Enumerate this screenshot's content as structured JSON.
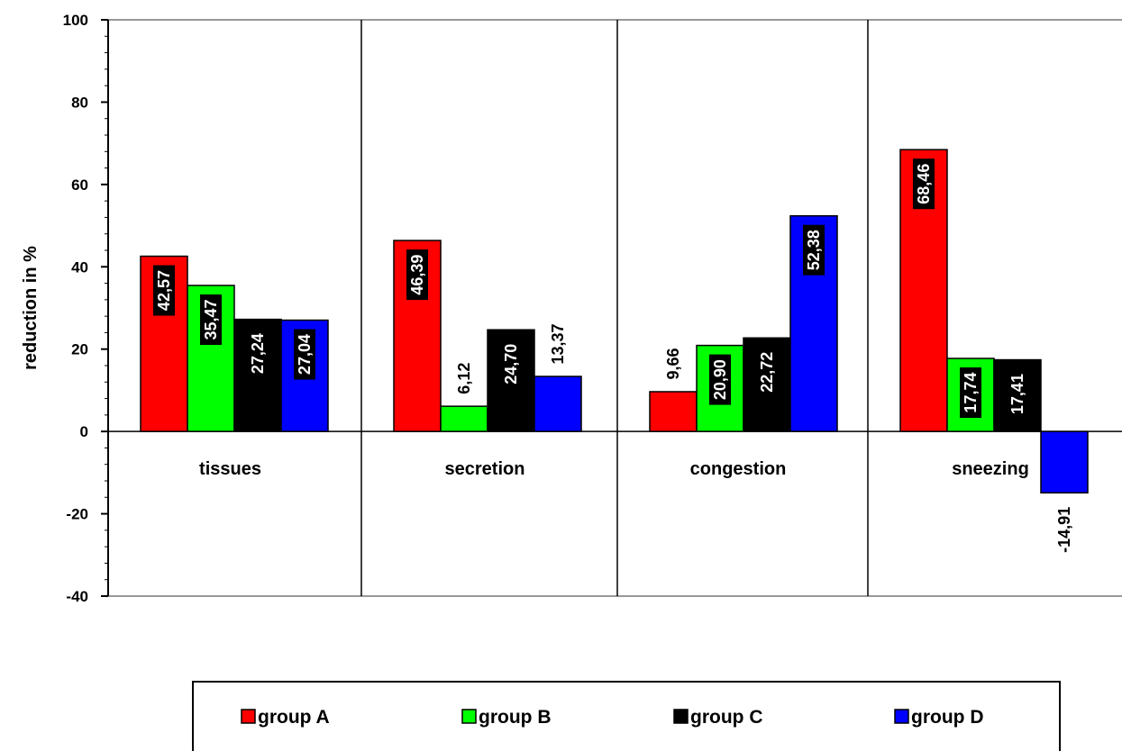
{
  "chart_data": {
    "type": "bar",
    "title": "",
    "xlabel": "",
    "ylabel": "reduction in %",
    "ylim": [
      -40,
      100
    ],
    "yticks": [
      "100",
      "80",
      "60",
      "40",
      "20",
      "0",
      "-20",
      "-40"
    ],
    "categories": [
      "tissues",
      "secretion",
      "congestion",
      "sneezing"
    ],
    "series": [
      {
        "name": "group A",
        "color": "#ff0000",
        "values": [
          42.57,
          46.39,
          9.66,
          68.46
        ],
        "labels": [
          "42,57",
          "46,39",
          "9,66",
          "68,46"
        ]
      },
      {
        "name": "group B",
        "color": "#00ff00",
        "values": [
          35.47,
          6.12,
          20.9,
          17.74
        ],
        "labels": [
          "35,47",
          "6,12",
          "20,90",
          "17,74"
        ]
      },
      {
        "name": "group C",
        "color": "#000000",
        "values": [
          27.24,
          24.7,
          22.72,
          17.41
        ],
        "labels": [
          "27,24",
          "24,70",
          "22,72",
          "17,41"
        ]
      },
      {
        "name": "group D",
        "color": "#0000ff",
        "values": [
          27.04,
          13.37,
          52.38,
          -14.91
        ],
        "labels": [
          "27,04",
          "13,37",
          "52,38",
          "-14,91"
        ]
      }
    ],
    "grid": false,
    "category_separators": true,
    "legend_position": "bottom"
  }
}
